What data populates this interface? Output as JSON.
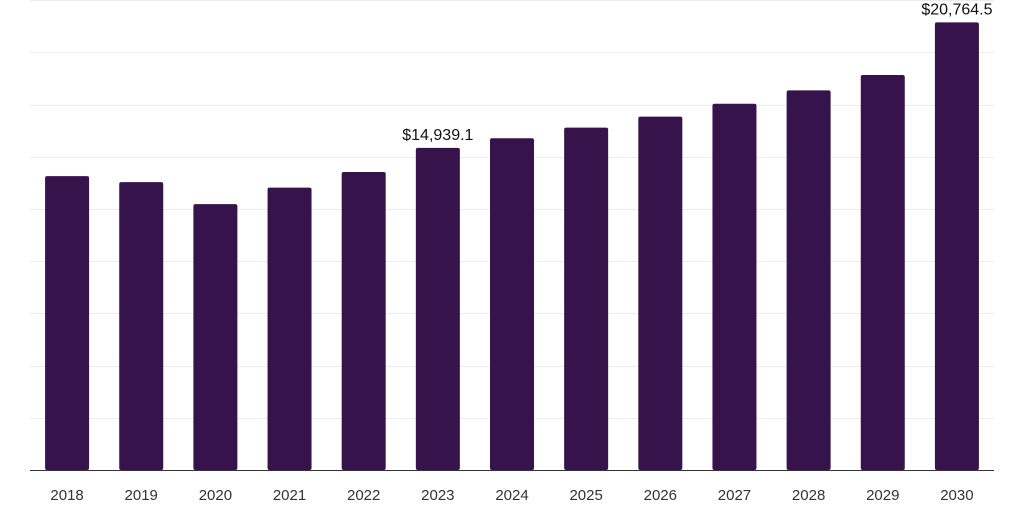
{
  "chart_data": {
    "type": "bar",
    "title": "",
    "xlabel": "",
    "ylabel": "",
    "categories": [
      "2018",
      "2019",
      "2020",
      "2021",
      "2022",
      "2023",
      "2024",
      "2025",
      "2026",
      "2027",
      "2028",
      "2029",
      "2030"
    ],
    "values": [
      13630,
      13350,
      12330,
      13100,
      13820,
      14939.1,
      15390,
      15880,
      16390,
      16990,
      17610,
      18320,
      20764.5
    ],
    "data_labels": [
      {
        "index": 5,
        "text": "$14,939.1"
      },
      {
        "index": 12,
        "text": "$20,764.5"
      }
    ],
    "ylim": [
      0,
      21800
    ],
    "grid": true,
    "bar_color": "#36134a",
    "legend": "none"
  }
}
